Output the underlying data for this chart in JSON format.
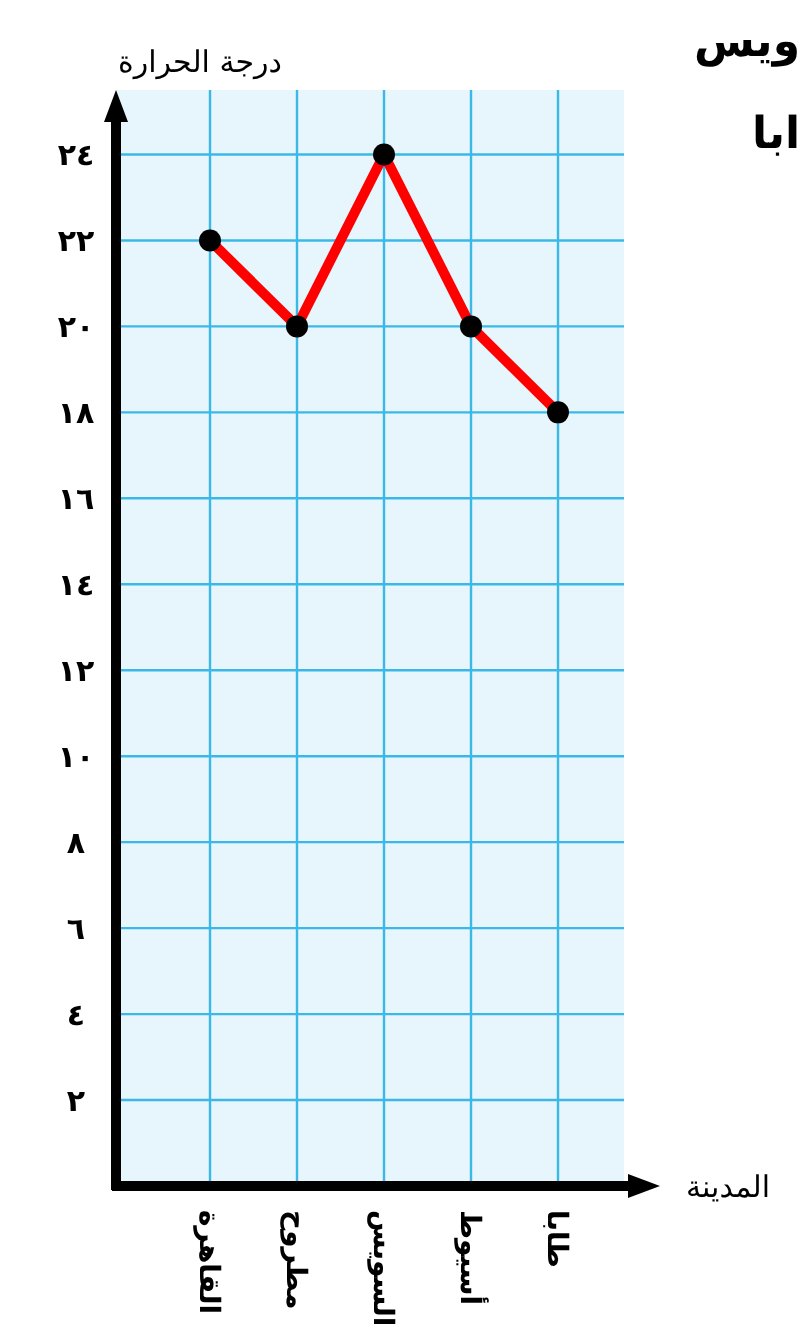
{
  "chart_data": {
    "type": "line",
    "xlabel": "المدينة",
    "ylabel": "درجة الحرارة",
    "categories": [
      "القاهرة",
      "مطروح",
      "السويس",
      "أسيوط",
      "طابا"
    ],
    "series": [
      {
        "color": "#ff0000",
        "values": [
          22,
          20,
          24,
          20,
          18
        ]
      }
    ],
    "ylim": [
      0,
      25.5
    ],
    "yticks": [
      {
        "value": 2,
        "label": "٢"
      },
      {
        "value": 4,
        "label": "٤"
      },
      {
        "value": 6,
        "label": "٦"
      },
      {
        "value": 8,
        "label": "٨"
      },
      {
        "value": 10,
        "label": "١٠"
      },
      {
        "value": 12,
        "label": "١٢"
      },
      {
        "value": 14,
        "label": "١٤"
      },
      {
        "value": 16,
        "label": "١٦"
      },
      {
        "value": 18,
        "label": "١٨"
      },
      {
        "value": 20,
        "label": "٢٠"
      },
      {
        "value": 22,
        "label": "٢٢"
      },
      {
        "value": 24,
        "label": "٢٤"
      }
    ],
    "grid": true,
    "marker": "circle",
    "line_style": "solid",
    "annotations": [
      "ويس",
      "ابا"
    ]
  }
}
